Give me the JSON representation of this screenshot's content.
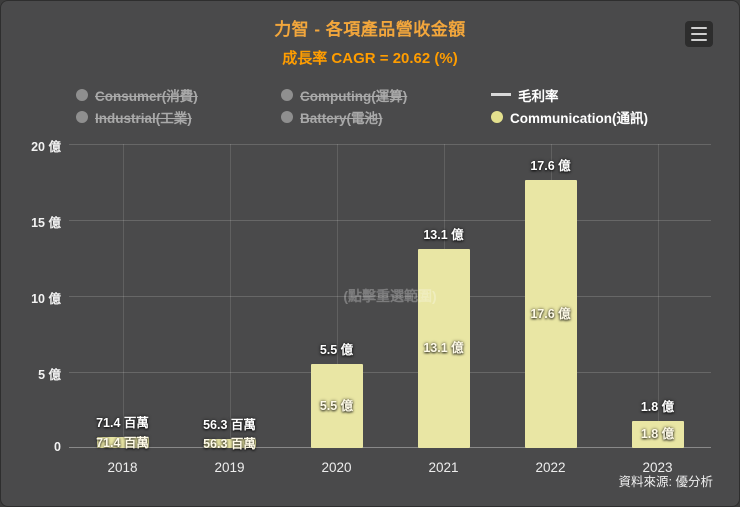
{
  "title": "力智 - 各項產品營收金額",
  "subtitle": "成長率 CAGR = 20.62 (%)",
  "menu": {
    "icon": "hamburger-icon"
  },
  "legend": {
    "items": [
      {
        "label": "Consumer(消費)",
        "active": false,
        "marker": "circle"
      },
      {
        "label": "Computing(運算)",
        "active": false,
        "marker": "circle"
      },
      {
        "label": "毛利率",
        "active": true,
        "marker": "line"
      },
      {
        "label": "Industrial(工業)",
        "active": false,
        "marker": "circle"
      },
      {
        "label": "Battery(電池)",
        "active": false,
        "marker": "circle"
      },
      {
        "label": "Communication(通訊)",
        "active": true,
        "marker": "circle",
        "color": "#e4e18e"
      }
    ]
  },
  "watermark": "(點擊重選範圍)",
  "source": "資料來源: 優分析",
  "colors": {
    "background": "#4a4a4b",
    "bar": "#e9e6a4",
    "title": "#f2a63c",
    "subtitle": "#ff9d00",
    "inactive_legend": "#a9a9a9"
  },
  "chart_data": {
    "type": "bar",
    "title": "力智 - 各項產品營收金額",
    "subtitle": "成長率 CAGR = 20.62 (%)",
    "categories": [
      "2018",
      "2019",
      "2020",
      "2021",
      "2022",
      "2023"
    ],
    "series": [
      {
        "name": "Communication(通訊)",
        "unit": "億",
        "values": [
          0.714,
          0.563,
          5.5,
          13.1,
          17.6,
          1.8
        ]
      }
    ],
    "value_labels": [
      "71.4 百萬",
      "56.3 百萬",
      "5.5 億",
      "13.1 億",
      "17.6 億",
      "1.8 億"
    ],
    "y_ticks": [
      "20 億",
      "15 億",
      "10 億",
      "5 億",
      "0"
    ],
    "ylim": [
      0,
      20
    ],
    "xlabel": "",
    "ylabel": "",
    "grid": true,
    "legend_position": "top"
  }
}
